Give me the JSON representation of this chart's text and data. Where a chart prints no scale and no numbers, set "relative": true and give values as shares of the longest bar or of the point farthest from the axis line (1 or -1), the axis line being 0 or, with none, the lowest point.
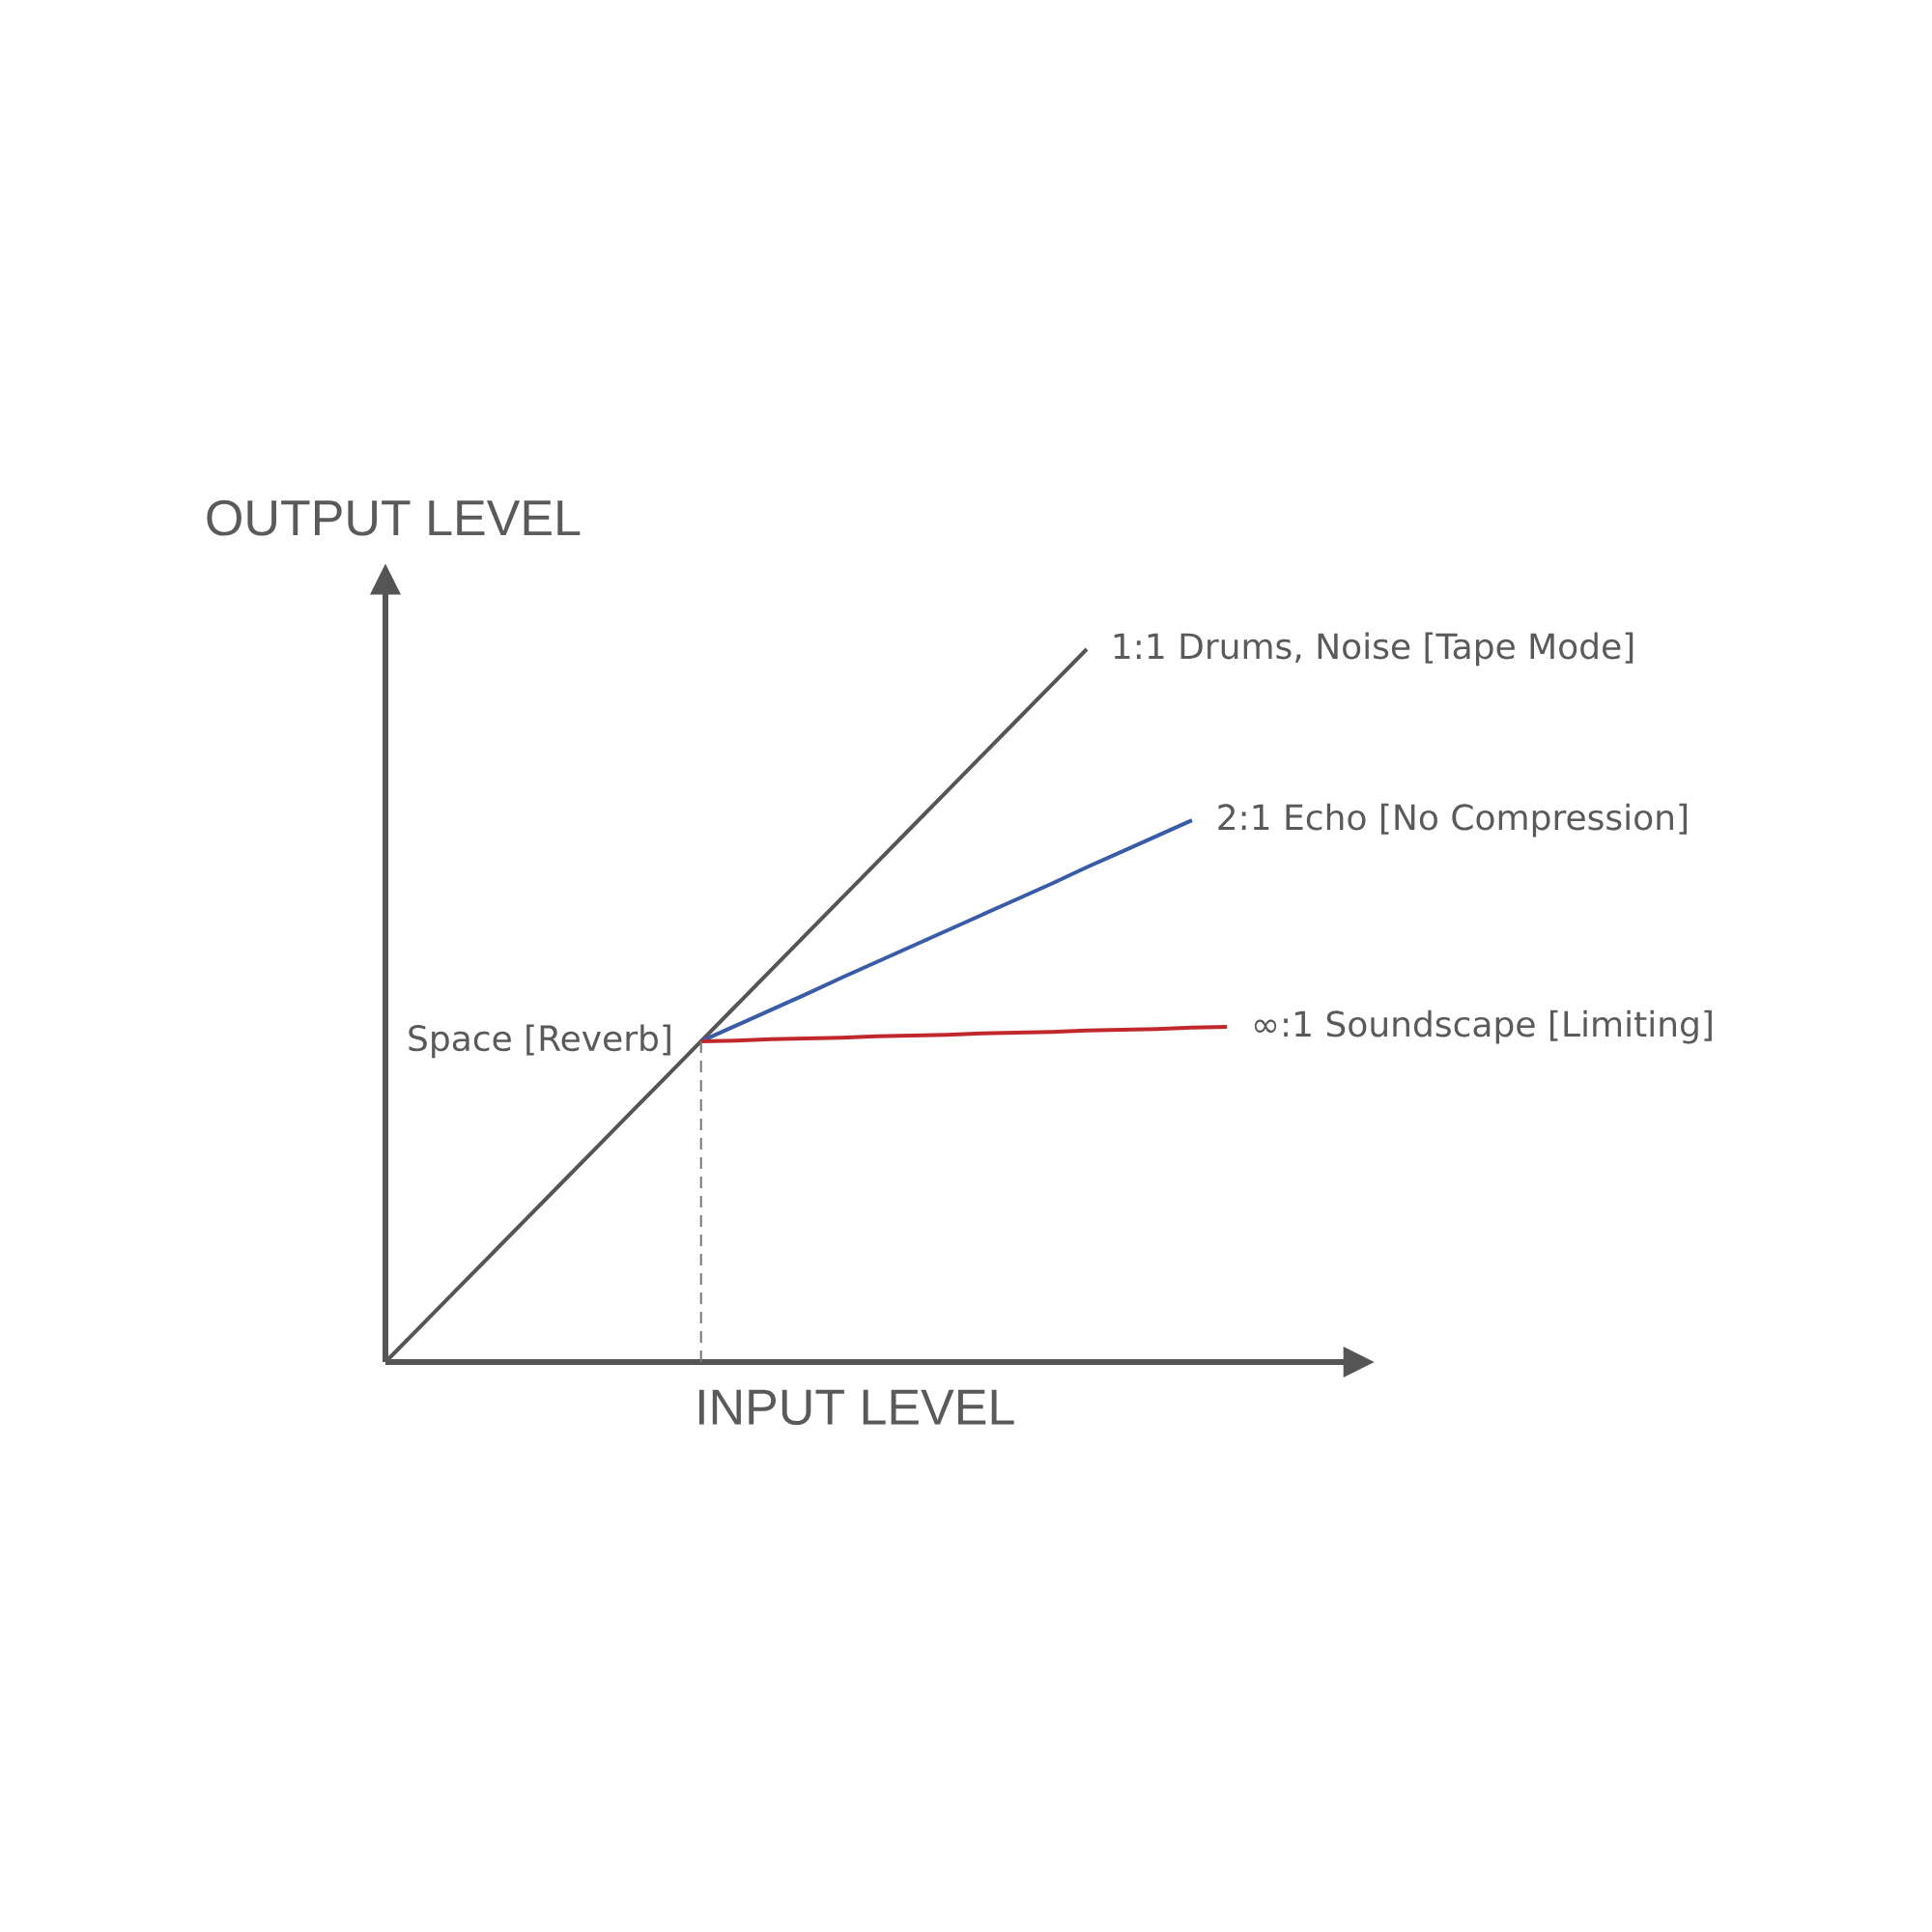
{
  "chart_data": {
    "type": "line",
    "relative": true,
    "xlabel": "INPUT LEVEL",
    "ylabel": "OUTPUT LEVEL",
    "categories": [
      null,
      null,
      null,
      null,
      null,
      null,
      null,
      null,
      null,
      null,
      null,
      null,
      null,
      null,
      null,
      null,
      null,
      null,
      null,
      null,
      null,
      null,
      null,
      null,
      null
    ],
    "series": [
      {
        "name": "1:1 Drums, Noise [Tape Mode]",
        "color": "#555555",
        "values": [
          0,
          0.05,
          0.1,
          0.15,
          0.2,
          0.25,
          0.3,
          0.35,
          0.4,
          0.45,
          0.5,
          0.55,
          0.6,
          0.65,
          0.7,
          0.75,
          0.8,
          0.85,
          0.9,
          0.95,
          1.0,
          null,
          null,
          null,
          null
        ]
      },
      {
        "name": "2:1 Echo [No Compression]",
        "color": "#3a5ca8",
        "values": [
          null,
          null,
          null,
          null,
          null,
          null,
          null,
          null,
          null,
          0.45,
          0.472,
          0.494,
          0.516,
          0.539,
          0.561,
          0.583,
          0.605,
          0.627,
          0.649,
          0.671,
          0.694,
          0.716,
          0.738,
          0.76,
          null
        ]
      },
      {
        "name": "∞:1 Soundscape [Limiting]",
        "color": "#c0282e",
        "values": [
          null,
          null,
          null,
          null,
          null,
          null,
          null,
          null,
          null,
          0.45,
          0.451,
          0.453,
          0.454,
          0.455,
          0.457,
          0.458,
          0.459,
          0.461,
          0.462,
          0.463,
          0.465,
          0.466,
          0.467,
          0.469,
          0.47
        ]
      }
    ],
    "annotations": [
      "Space [Reverb]"
    ]
  }
}
